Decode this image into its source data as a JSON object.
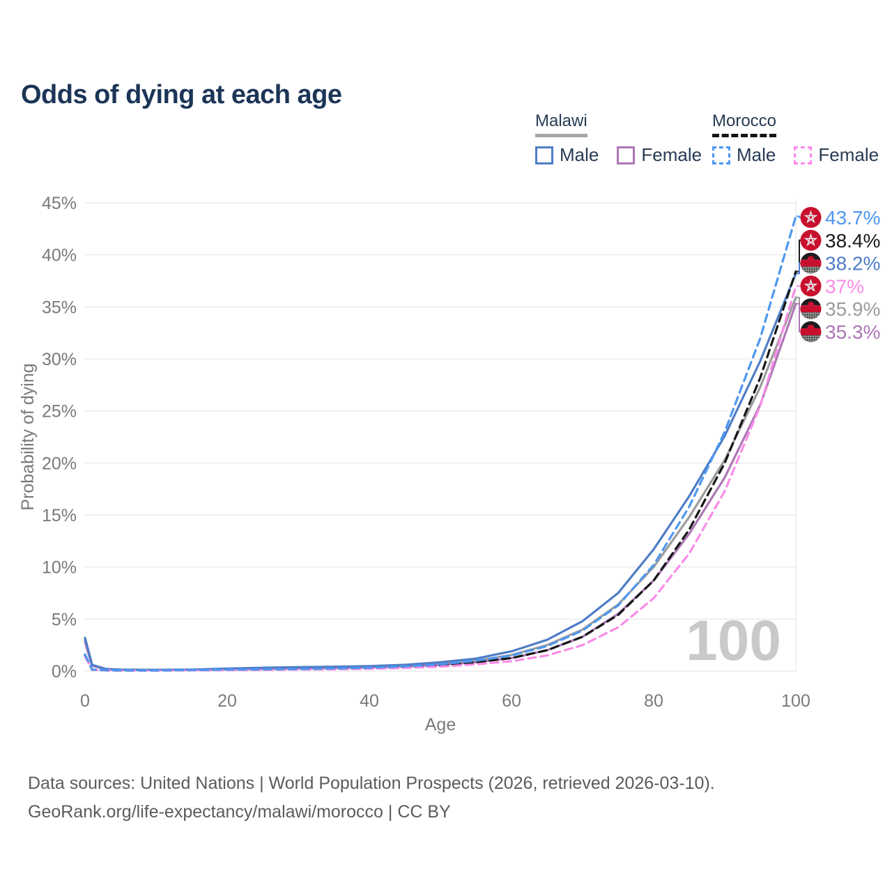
{
  "title": "Odds of dying at each age",
  "watermark": "100",
  "legend": {
    "groups": [
      {
        "country": "Malawi",
        "line_style": "solid",
        "underline_color": "#a6a6a6",
        "items": [
          {
            "label": "Male",
            "color": "#4f7dc6",
            "line_style": "solid"
          },
          {
            "label": "Female",
            "color": "#ac77b5",
            "line_style": "solid"
          }
        ]
      },
      {
        "country": "Morocco",
        "line_style": "dashed",
        "underline_color": "#141414",
        "items": [
          {
            "label": "Male",
            "color": "#4e97f0",
            "line_style": "dashed"
          },
          {
            "label": "Female",
            "color": "#fa8ce8",
            "line_style": "dashed"
          }
        ]
      }
    ]
  },
  "axes": {
    "x": {
      "label": "Age",
      "min": 0,
      "max": 100,
      "ticks": [
        0,
        20,
        40,
        60,
        80,
        100
      ],
      "tick_labels": [
        "0",
        "20",
        "40",
        "60",
        "80",
        "100"
      ]
    },
    "y": {
      "label": "Probability of dying",
      "min": 0,
      "max": 45,
      "ticks": [
        0,
        5,
        10,
        15,
        20,
        25,
        30,
        35,
        40,
        45
      ],
      "tick_labels": [
        "0%",
        "5%",
        "10%",
        "15%",
        "20%",
        "25%",
        "30%",
        "35%",
        "40%",
        "45%"
      ]
    }
  },
  "annotations": [
    {
      "label": "43.7%",
      "value": 43.7,
      "series": "Morocco Male",
      "flag": "morocco",
      "color": "#4e97f0"
    },
    {
      "label": "38.4%",
      "value": 38.4,
      "series": "Morocco Both sexes",
      "flag": "morocco",
      "color": "#1a1a1a"
    },
    {
      "label": "38.2%",
      "value": 38.2,
      "series": "Malawi Male",
      "flag": "malawi",
      "color": "#4f7dc6"
    },
    {
      "label": "37%",
      "value": 37.0,
      "series": "Morocco Female",
      "flag": "morocco",
      "color": "#fa8ce8"
    },
    {
      "label": "35.9%",
      "value": 35.9,
      "series": "Malawi Both sexes",
      "flag": "malawi",
      "color": "#9c9c9c"
    },
    {
      "label": "35.3%",
      "value": 35.3,
      "series": "Malawi Female",
      "flag": "malawi",
      "color": "#ac77b5"
    }
  ],
  "footer": {
    "line1": "Data sources: United Nations | World Population Prospects (2026, retrieved 2026-03-10).",
    "line2": "GeoRank.org/life-expectancy/malawi/morocco | CC BY"
  },
  "chart_data": {
    "type": "line",
    "title": "Odds of dying at each age",
    "xlabel": "Age",
    "ylabel": "Probability of dying",
    "xlim": [
      0,
      100
    ],
    "ylim": [
      0,
      45
    ],
    "grid": true,
    "legend_position": "top-right",
    "x": [
      0,
      1,
      3,
      5,
      10,
      15,
      20,
      25,
      30,
      35,
      40,
      45,
      50,
      55,
      60,
      65,
      70,
      75,
      80,
      85,
      90,
      95,
      100
    ],
    "series": [
      {
        "name": "Malawi Both sexes",
        "color": "#9c9c9c",
        "dash": "solid",
        "values": [
          3.0,
          0.55,
          0.18,
          0.13,
          0.11,
          0.13,
          0.2,
          0.27,
          0.32,
          0.36,
          0.42,
          0.52,
          0.72,
          1.0,
          1.55,
          2.5,
          4.0,
          6.4,
          10.0,
          14.8,
          20.3,
          27.3,
          35.9
        ]
      },
      {
        "name": "Malawi Female",
        "color": "#ac77b5",
        "dash": "solid",
        "values": [
          2.8,
          0.5,
          0.17,
          0.12,
          0.1,
          0.12,
          0.16,
          0.2,
          0.25,
          0.3,
          0.36,
          0.44,
          0.6,
          0.85,
          1.25,
          2.0,
          3.3,
          5.5,
          8.7,
          13.2,
          18.6,
          25.6,
          35.3
        ]
      },
      {
        "name": "Malawi Male",
        "color": "#4f7dc6",
        "dash": "solid",
        "values": [
          3.2,
          0.6,
          0.2,
          0.15,
          0.12,
          0.15,
          0.25,
          0.32,
          0.38,
          0.42,
          0.48,
          0.6,
          0.85,
          1.2,
          1.9,
          3.0,
          4.8,
          7.5,
          11.7,
          16.8,
          22.6,
          29.8,
          38.2
        ]
      },
      {
        "name": "Morocco Both sexes",
        "color": "#161616",
        "dash": "dashed",
        "values": [
          1.5,
          0.13,
          0.07,
          0.06,
          0.06,
          0.08,
          0.12,
          0.15,
          0.18,
          0.22,
          0.28,
          0.38,
          0.55,
          0.85,
          1.25,
          2.0,
          3.3,
          5.4,
          8.7,
          13.6,
          20.0,
          28.2,
          38.4
        ]
      },
      {
        "name": "Morocco Female",
        "color": "#fa8ce8",
        "dash": "dashed",
        "values": [
          1.4,
          0.12,
          0.06,
          0.05,
          0.05,
          0.07,
          0.09,
          0.11,
          0.14,
          0.17,
          0.22,
          0.3,
          0.42,
          0.65,
          0.95,
          1.5,
          2.5,
          4.2,
          7.0,
          11.3,
          17.3,
          25.5,
          37.0
        ]
      },
      {
        "name": "Morocco Male",
        "color": "#4e97f0",
        "dash": "dashed",
        "values": [
          1.6,
          0.15,
          0.08,
          0.07,
          0.07,
          0.1,
          0.14,
          0.17,
          0.2,
          0.25,
          0.32,
          0.45,
          0.65,
          1.0,
          1.5,
          2.4,
          3.9,
          6.3,
          10.2,
          15.8,
          23.0,
          32.0,
          43.7
        ]
      }
    ]
  }
}
